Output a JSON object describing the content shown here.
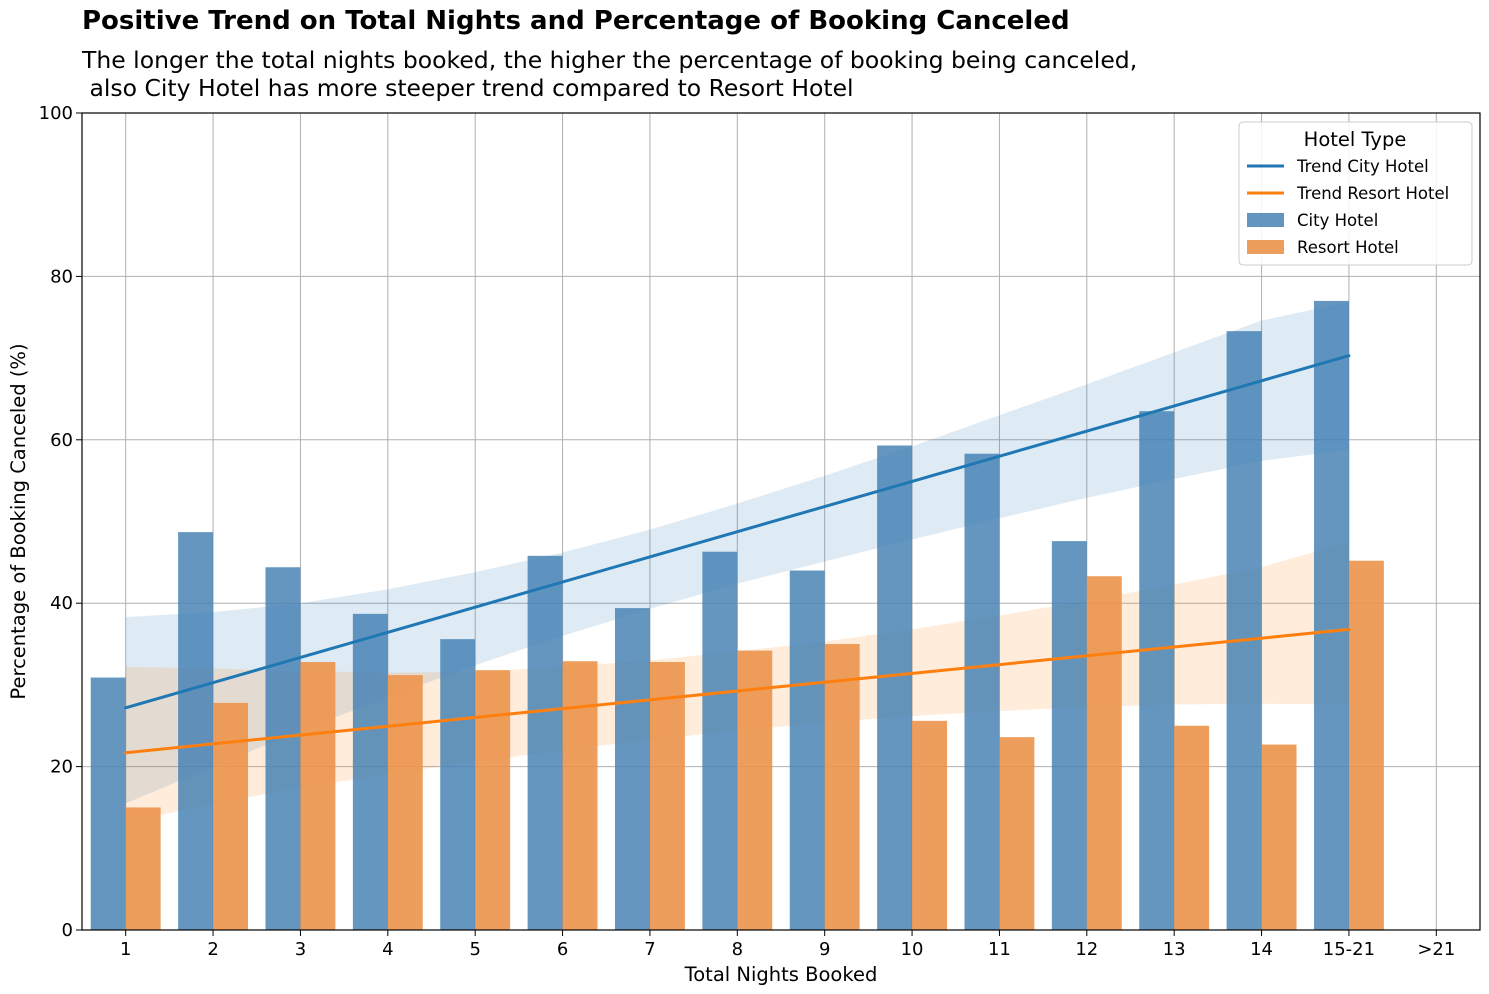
{
  "chart_data": {
    "type": "bar",
    "title": "Positive Trend on Total Nights and Percentage of Booking Canceled",
    "subtitle_lines": [
      "The longer the total nights booked, the higher the percentage of booking being canceled,",
      " also City Hotel has more steeper trend compared to Resort Hotel"
    ],
    "xlabel": "Total Nights Booked",
    "ylabel": "Percentage of Booking Canceled (%)",
    "ylim": [
      0,
      100
    ],
    "yticks": [
      0,
      20,
      40,
      60,
      80,
      100
    ],
    "grid": true,
    "legend_placement": "top-right",
    "legend_title": "Hotel Type",
    "categories": [
      "1",
      "2",
      "3",
      "4",
      "5",
      "6",
      "7",
      "8",
      "9",
      "10",
      "11",
      "12",
      "13",
      "14",
      "15-21",
      ">21"
    ],
    "series": [
      {
        "name": "City Hotel",
        "color": "#4682b4",
        "values": [
          30.9,
          48.7,
          44.4,
          38.7,
          35.6,
          45.8,
          39.4,
          46.3,
          44.0,
          59.3,
          58.3,
          47.6,
          63.5,
          73.3,
          77.0,
          null
        ]
      },
      {
        "name": "Resort Hotel",
        "color": "#ec944a",
        "values": [
          15.0,
          27.8,
          32.8,
          31.2,
          31.8,
          32.9,
          32.8,
          34.2,
          35.0,
          25.6,
          23.6,
          43.3,
          25.0,
          22.7,
          45.2,
          null
        ]
      }
    ],
    "trends": [
      {
        "name": "Trend City Hotel",
        "color": "#1f77b4",
        "start": [
          1,
          27.2
        ],
        "end": [
          15,
          70.3
        ],
        "ci_upper": [
          38.3,
          38.9,
          40.0,
          41.7,
          43.8,
          46.2,
          49.0,
          52.2,
          55.6,
          59.2,
          63.0,
          66.8,
          70.7,
          74.6,
          76.9
        ],
        "ci_lower": [
          15.5,
          20.0,
          24.4,
          28.5,
          32.4,
          36.0,
          39.3,
          42.4,
          45.1,
          47.8,
          50.4,
          52.9,
          55.2,
          57.4,
          58.8
        ]
      },
      {
        "name": "Trend Resort Hotel",
        "color": "#ff7f0e",
        "start": [
          1,
          21.7
        ],
        "end": [
          15,
          36.8
        ],
        "ci_upper": [
          32.2,
          32.0,
          31.7,
          31.5,
          31.6,
          32.2,
          33.0,
          34.1,
          35.3,
          36.8,
          38.5,
          40.3,
          42.3,
          44.4,
          47.5
        ],
        "ci_lower": [
          13.1,
          15.5,
          17.4,
          19.1,
          20.6,
          22.0,
          23.3,
          24.4,
          25.4,
          26.2,
          26.8,
          27.3,
          27.6,
          27.7,
          27.6
        ]
      }
    ]
  }
}
